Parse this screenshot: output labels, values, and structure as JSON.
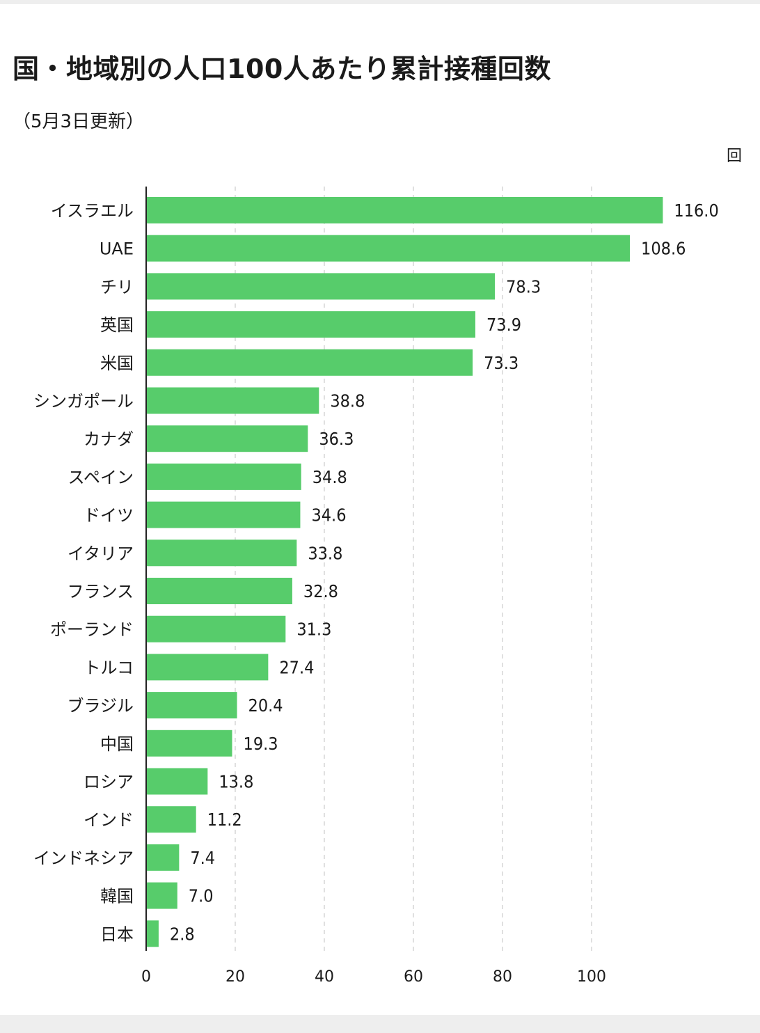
{
  "title": "国・地域別の人口100人あたり累計接種回数",
  "subtitle": "（5月3日更新）",
  "unit": "回",
  "colors": {
    "bar": "#57cc6b",
    "grid": "#d6d6d6",
    "axis": "#222222"
  },
  "chart_data": {
    "type": "bar",
    "orientation": "horizontal",
    "categories": [
      "イスラエル",
      "UAE",
      "チリ",
      "英国",
      "米国",
      "シンガポール",
      "カナダ",
      "スペイン",
      "ドイツ",
      "イタリア",
      "フランス",
      "ポーランド",
      "トルコ",
      "ブラジル",
      "中国",
      "ロシア",
      "インド",
      "インドネシア",
      "韓国",
      "日本"
    ],
    "values": [
      116.0,
      108.6,
      78.3,
      73.9,
      73.3,
      38.8,
      36.3,
      34.8,
      34.6,
      33.8,
      32.8,
      31.3,
      27.4,
      20.4,
      19.3,
      13.8,
      11.2,
      7.4,
      7.0,
      2.8
    ],
    "value_labels": [
      "116.0",
      "108.6",
      "78.3",
      "73.9",
      "73.3",
      "38.8",
      "36.3",
      "34.8",
      "34.6",
      "33.8",
      "32.8",
      "31.3",
      "27.4",
      "20.4",
      "19.3",
      "13.8",
      "11.2",
      "7.4",
      "7.0",
      "2.8"
    ],
    "xticks": [
      0,
      20,
      40,
      60,
      80,
      100
    ],
    "xlim": [
      0,
      116
    ],
    "grid": true,
    "title": "国・地域別の人口100人あたり累計接種回数",
    "xlabel": "回",
    "ylabel": ""
  }
}
